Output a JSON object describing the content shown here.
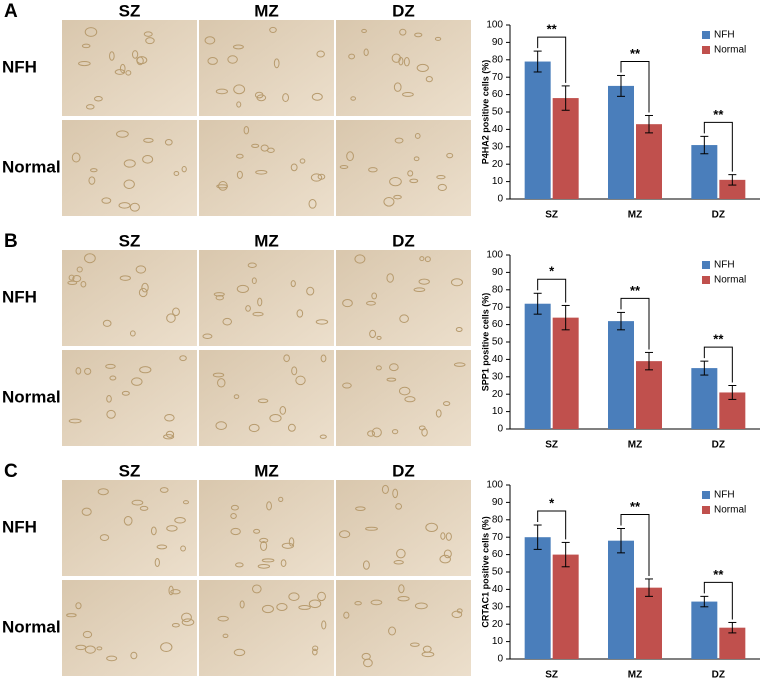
{
  "panels": [
    {
      "label": "A",
      "columns": [
        "SZ",
        "MZ",
        "DZ"
      ],
      "rows": [
        "NFH",
        "Normal"
      ]
    },
    {
      "label": "B",
      "columns": [
        "SZ",
        "MZ",
        "DZ"
      ],
      "rows": [
        "NFH",
        "Normal"
      ]
    },
    {
      "label": "C",
      "columns": [
        "SZ",
        "MZ",
        "DZ"
      ],
      "rows": [
        "NFH",
        "Normal"
      ]
    }
  ],
  "chart_data": [
    {
      "type": "bar",
      "ylabel": "P4HA2 positive cells (%)",
      "categories": [
        "SZ",
        "MZ",
        "DZ"
      ],
      "series": [
        {
          "name": "NFH",
          "color": "#4a7ebb",
          "values": [
            79,
            65,
            31
          ],
          "errors": [
            6,
            6,
            5
          ]
        },
        {
          "name": "Normal",
          "color": "#c0504d",
          "values": [
            58,
            43,
            11
          ],
          "errors": [
            7,
            5,
            3
          ]
        }
      ],
      "annotations": [
        "**",
        "**",
        "**"
      ],
      "ylim": [
        0,
        100
      ],
      "yticks": [
        0,
        10,
        20,
        30,
        40,
        50,
        60,
        70,
        80,
        90,
        100
      ],
      "legend": "top-right"
    },
    {
      "type": "bar",
      "ylabel": "SPP1 positive cells (%)",
      "categories": [
        "SZ",
        "MZ",
        "DZ"
      ],
      "series": [
        {
          "name": "NFH",
          "color": "#4a7ebb",
          "values": [
            72,
            62,
            35
          ],
          "errors": [
            6,
            5,
            4
          ]
        },
        {
          "name": "Normal",
          "color": "#c0504d",
          "values": [
            64,
            39,
            21
          ],
          "errors": [
            7,
            5,
            4
          ]
        }
      ],
      "annotations": [
        "*",
        "**",
        "**"
      ],
      "ylim": [
        0,
        100
      ],
      "yticks": [
        0,
        10,
        20,
        30,
        40,
        50,
        60,
        70,
        80,
        90,
        100
      ],
      "legend": "top-right"
    },
    {
      "type": "bar",
      "ylabel": "CRTAC1 positive cells (%)",
      "categories": [
        "SZ",
        "MZ",
        "DZ"
      ],
      "series": [
        {
          "name": "NFH",
          "color": "#4a7ebb",
          "values": [
            70,
            68,
            33
          ],
          "errors": [
            7,
            7,
            3
          ]
        },
        {
          "name": "Normal",
          "color": "#c0504d",
          "values": [
            60,
            41,
            18
          ],
          "errors": [
            7,
            5,
            3
          ]
        }
      ],
      "annotations": [
        "*",
        "**",
        "**"
      ],
      "ylim": [
        0,
        100
      ],
      "yticks": [
        0,
        10,
        20,
        30,
        40,
        50,
        60,
        70,
        80,
        90,
        100
      ],
      "legend": "top-right"
    }
  ]
}
